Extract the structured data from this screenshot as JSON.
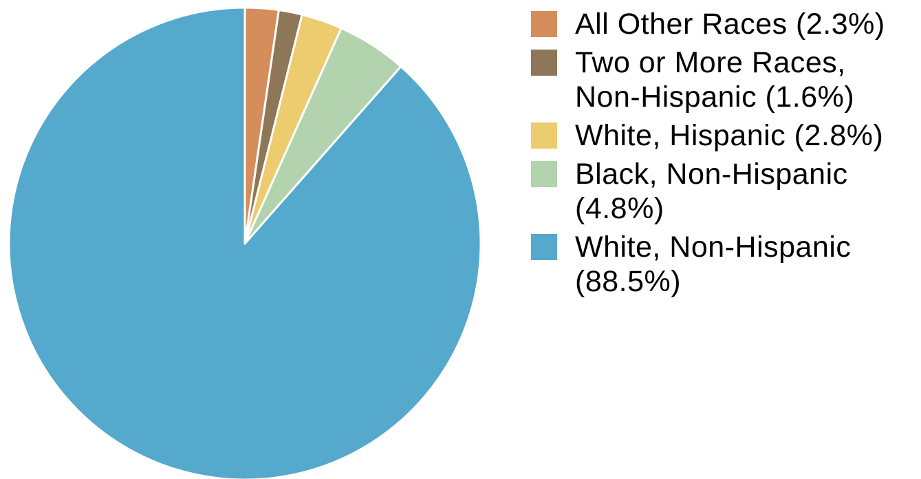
{
  "chart_data": {
    "type": "pie",
    "start_angle": "12 o'clock",
    "direction": "clockwise",
    "legend_position": "right",
    "slices": [
      {
        "label": "All Other Races (2.3%)",
        "value": 2.3,
        "color": "#D58E5B"
      },
      {
        "label": "Two or More Races, Non-Hispanic (1.6%)",
        "value": 1.6,
        "color": "#8E7658"
      },
      {
        "label": "White, Hispanic (2.8%)",
        "value": 2.8,
        "color": "#EDCB6F"
      },
      {
        "label": "Black, Non-Hispanic (4.8%)",
        "value": 4.8,
        "color": "#B2D3AE"
      },
      {
        "label": "White, Non-Hispanic (88.5%)",
        "value": 88.5,
        "color": "#54A9CD"
      }
    ]
  }
}
